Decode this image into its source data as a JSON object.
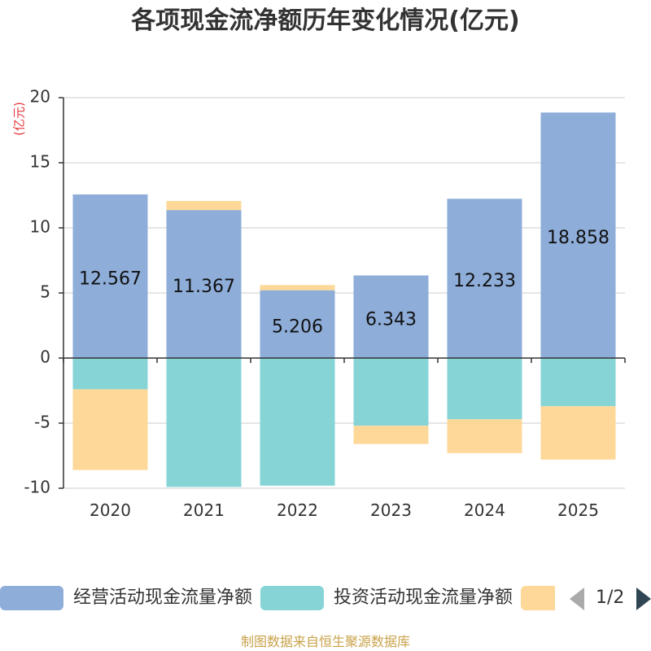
{
  "chart_data": {
    "type": "bar",
    "stacked": true,
    "title": "各项现金流净额历年变化情况(亿元)",
    "ylabel": "(亿元)",
    "xlabel": "",
    "categories": [
      "2020",
      "2021",
      "2022",
      "2023",
      "2024",
      "2025"
    ],
    "ylim": [
      -10,
      20
    ],
    "yticks": [
      20,
      15,
      10,
      5,
      0,
      -5,
      -10
    ],
    "grid": true,
    "series": [
      {
        "name": "经营活动现金流量净额",
        "color": "#8eadd9",
        "values": [
          12.567,
          11.367,
          5.206,
          6.343,
          12.233,
          18.858
        ],
        "show_labels": true
      },
      {
        "name": "投资活动现金流量净额",
        "color": "#86d4d6",
        "values": [
          -2.4,
          -9.9,
          -9.8,
          -5.2,
          -4.7,
          -3.7
        ],
        "show_labels": false
      },
      {
        "name": "",
        "color": "#fdd899",
        "values": [
          -6.2,
          0.7,
          0.4,
          -1.4,
          -2.6,
          -4.1
        ],
        "show_labels": false
      }
    ],
    "legend_position": "bottom"
  },
  "legend": {
    "items": [
      {
        "label": "经营活动现金流量净额",
        "color": "#8eadd9"
      },
      {
        "label": "投资活动现金流量净额",
        "color": "#86d4d6"
      },
      {
        "label": "",
        "color": "#fdd899"
      }
    ],
    "page_text": "1/2"
  },
  "source_text": "制图数据来自恒生聚源数据库"
}
